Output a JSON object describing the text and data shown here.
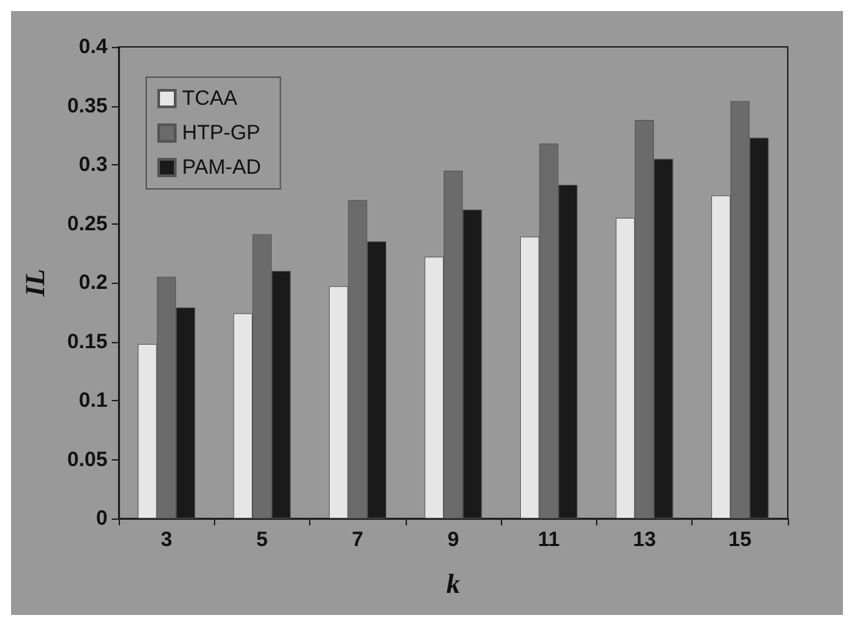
{
  "chart_data": {
    "type": "bar",
    "xlabel": "k",
    "ylabel": "IL",
    "categories": [
      "3",
      "5",
      "7",
      "9",
      "11",
      "13",
      "15"
    ],
    "series": [
      {
        "name": "TCAA",
        "color": "#e6e6e6",
        "values": [
          0.148,
          0.174,
          0.197,
          0.222,
          0.239,
          0.255,
          0.274
        ]
      },
      {
        "name": "HTP-GP",
        "color": "#6b6b6b",
        "values": [
          0.205,
          0.241,
          0.27,
          0.295,
          0.318,
          0.338,
          0.354
        ]
      },
      {
        "name": "PAM-AD",
        "color": "#1a1a1a",
        "values": [
          0.179,
          0.21,
          0.235,
          0.262,
          0.283,
          0.305,
          0.323
        ]
      }
    ],
    "ylim": [
      0,
      0.4
    ],
    "yticks": [
      0,
      0.05,
      0.1,
      0.15,
      0.2,
      0.25,
      0.3,
      0.35,
      0.4
    ],
    "grid": false,
    "legend": "top left"
  }
}
